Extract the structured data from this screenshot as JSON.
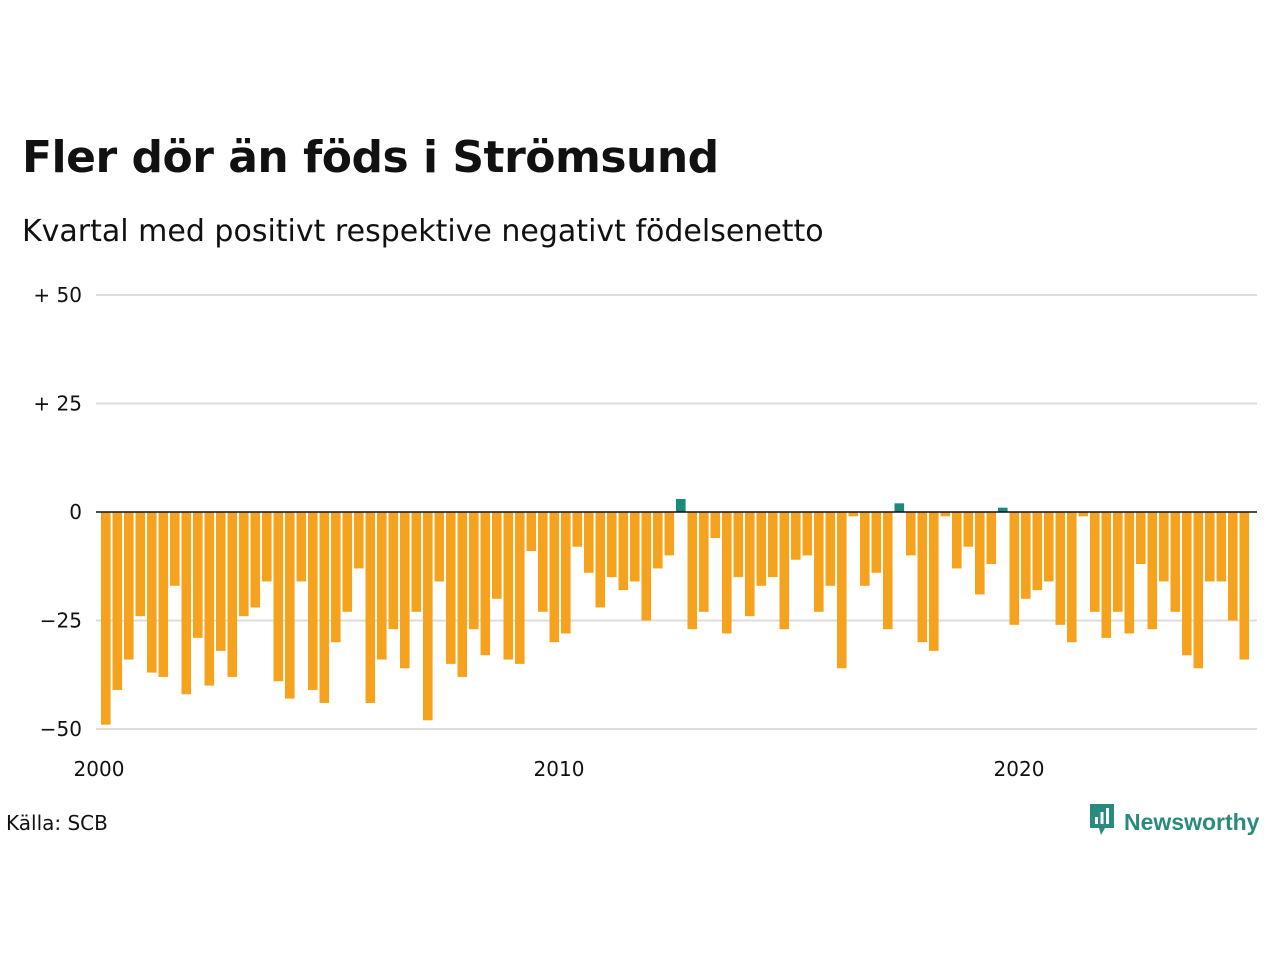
{
  "title": "Fler dör än föds i Strömsund",
  "subtitle": "Kvartal med positivt respektive negativt födelsenetto",
  "source": "Källa: SCB",
  "brand": {
    "name": "Newsworthy",
    "icon": "newsworthy-logo-icon",
    "color": "#2a8a7d"
  },
  "chart_data": {
    "type": "bar",
    "title": "Fler dör än föds i Strömsund",
    "subtitle": "Kvartal med positivt respektive negativt födelsenetto",
    "xlabel": "",
    "ylabel": "",
    "ylim": [
      -50,
      50
    ],
    "y_ticks": [
      {
        "value": 50,
        "label": "+ 50"
      },
      {
        "value": 25,
        "label": "+ 25"
      },
      {
        "value": 0,
        "label": "0"
      },
      {
        "value": -25,
        "label": "−25"
      },
      {
        "value": -50,
        "label": "−50"
      }
    ],
    "x_start_year": 2000,
    "x_end_year": 2025,
    "x_ticks": [
      "2000",
      "2010",
      "2020"
    ],
    "periods_per_year": 4,
    "colors": {
      "positive": "#1b8a7c",
      "negative": "#f5a31f",
      "grid": "#dddddd",
      "zero_line": "#111111"
    },
    "grid": true,
    "values": [
      -49,
      -41,
      -34,
      -24,
      -37,
      -38,
      -17,
      -42,
      -29,
      -40,
      -32,
      -38,
      -24,
      -22,
      -16,
      -39,
      -43,
      -16,
      -41,
      -44,
      -30,
      -23,
      -13,
      -44,
      -34,
      -27,
      -36,
      -23,
      -48,
      -16,
      -35,
      -38,
      -27,
      -33,
      -20,
      -34,
      -35,
      -9,
      -23,
      -30,
      -28,
      -8,
      -14,
      -22,
      -15,
      -18,
      -16,
      -25,
      -13,
      -10,
      3,
      -27,
      -23,
      -6,
      -28,
      -15,
      -24,
      -17,
      -15,
      -27,
      -11,
      -10,
      -23,
      -17,
      -36,
      -1,
      -17,
      -14,
      -27,
      2,
      -10,
      -30,
      -32,
      -1,
      -13,
      -8,
      -19,
      -12,
      1,
      -26,
      -20,
      -18,
      -16,
      -26,
      -30,
      -1,
      -23,
      -29,
      -23,
      -28,
      -12,
      -27,
      -16,
      -23,
      -33,
      -36,
      -16,
      -16,
      -25,
      -34
    ]
  }
}
